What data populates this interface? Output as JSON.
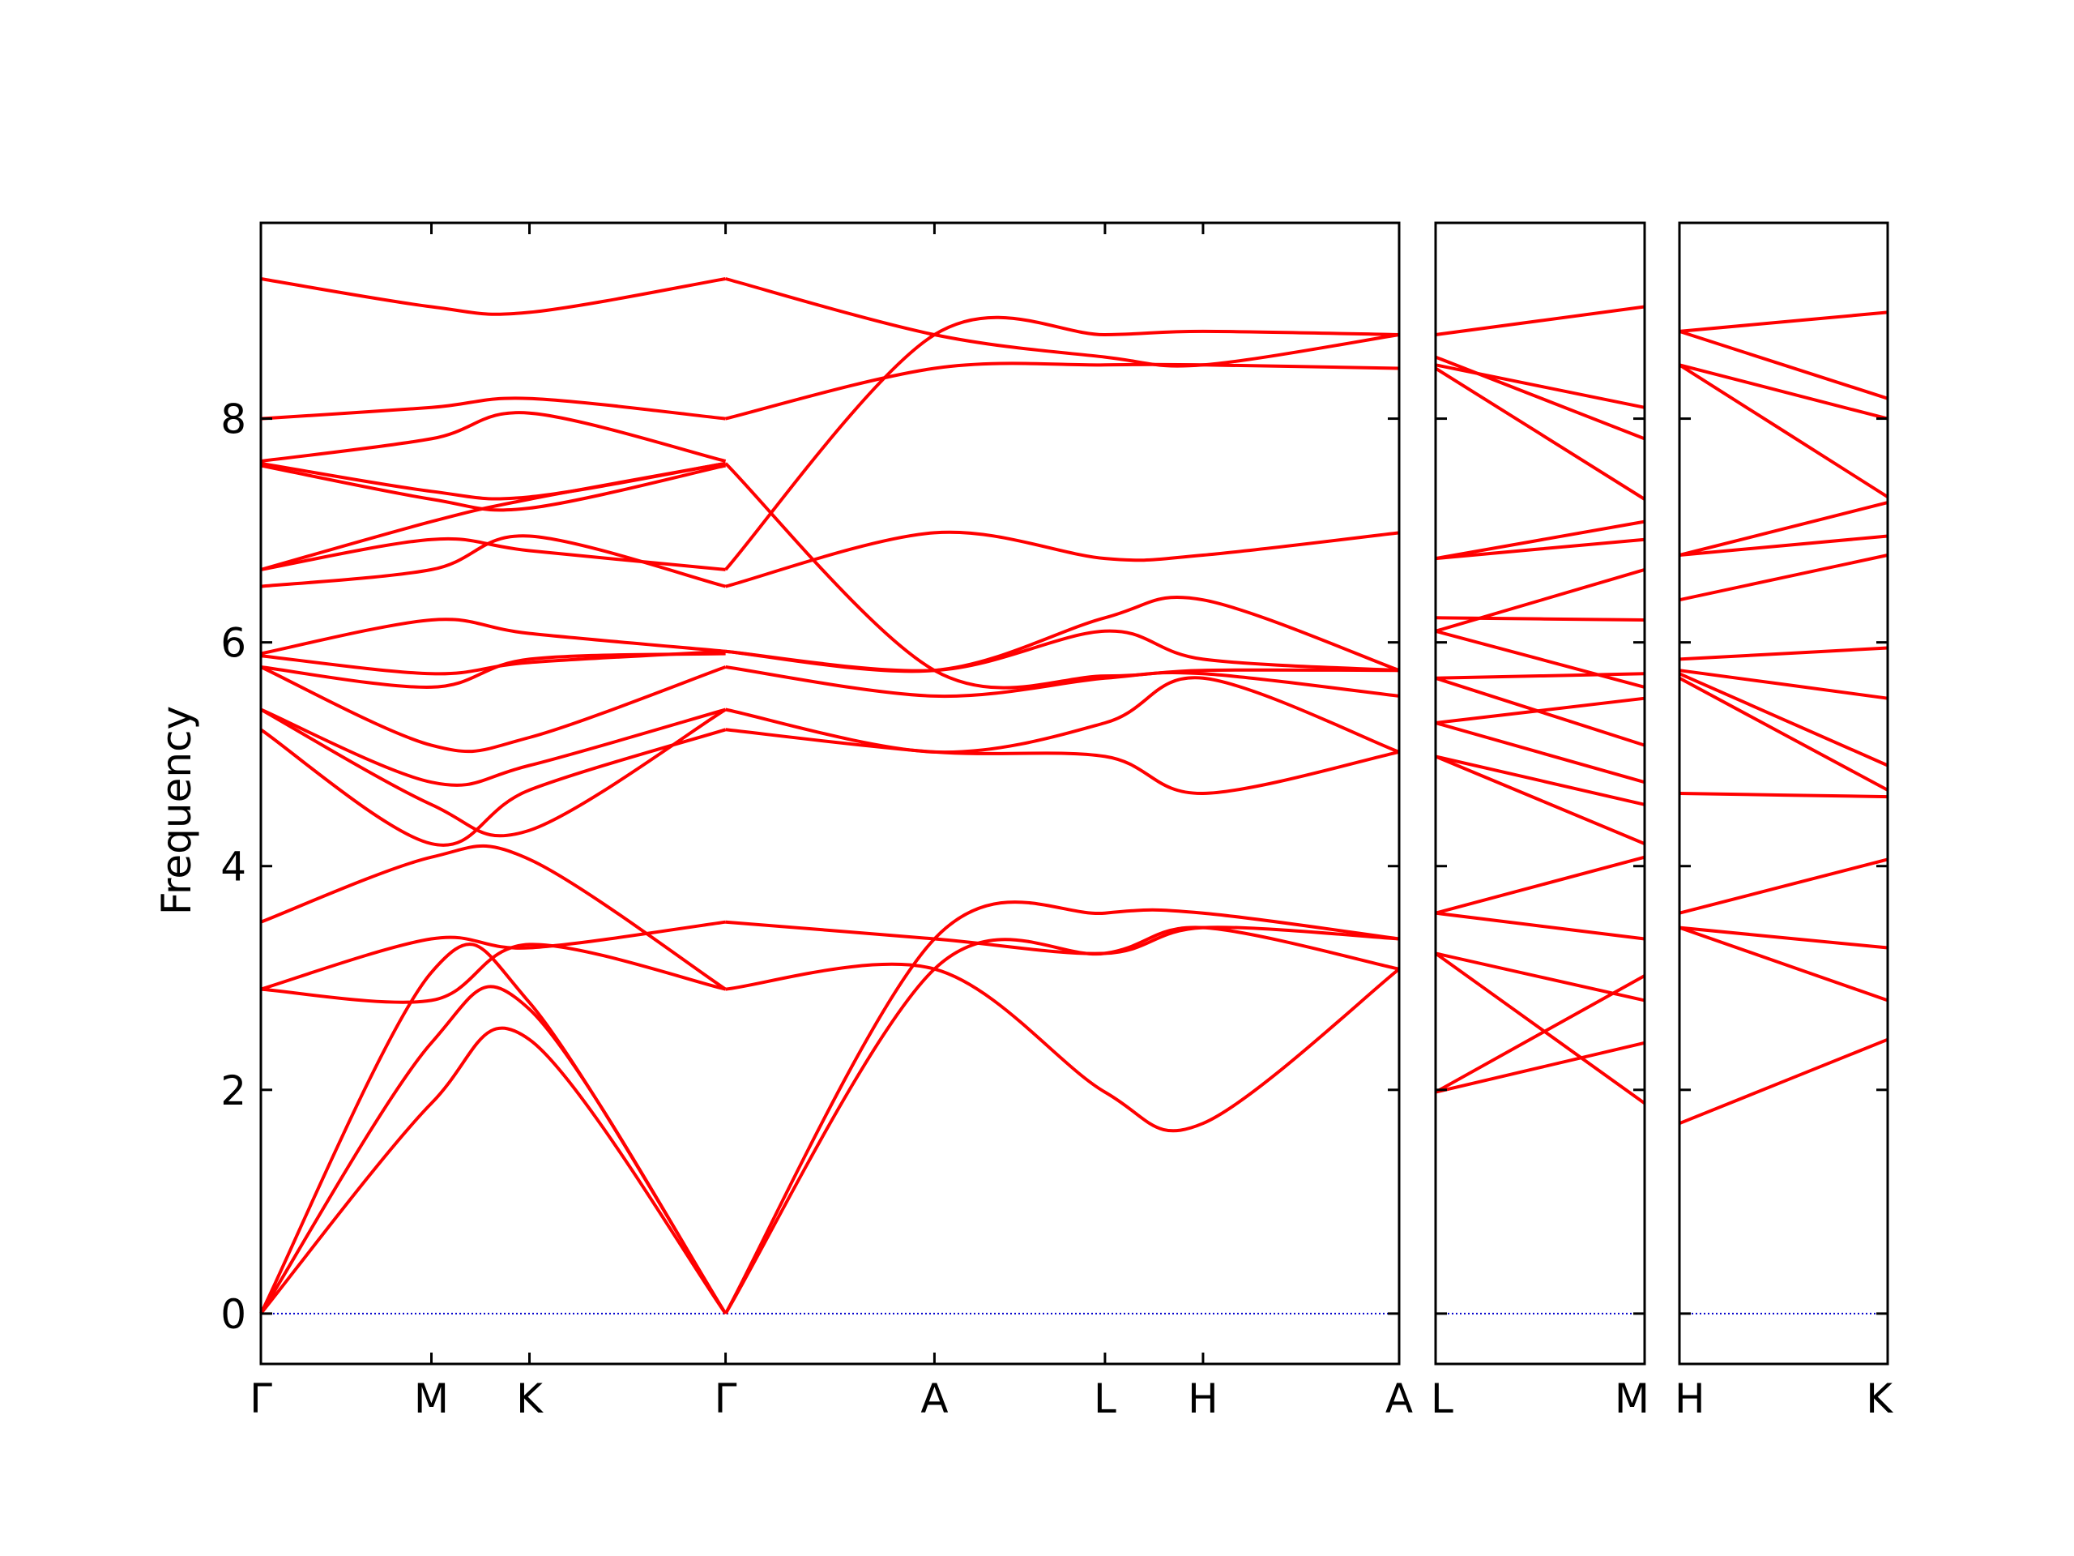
{
  "chart_data": {
    "type": "line",
    "title": "",
    "ylabel": "Frequency",
    "ylim": [
      -0.45,
      9.75
    ],
    "yticks": [
      0,
      2,
      4,
      6,
      8
    ],
    "colors": {
      "bands": "#ff0000",
      "zero_line": "#0000cc",
      "axes": "#000000"
    },
    "panels": [
      {
        "id": "p1",
        "points": [
          {
            "label": "Γ",
            "x": 0.0
          },
          {
            "label": "M",
            "x": 0.8
          },
          {
            "label": "K",
            "x": 1.26
          },
          {
            "label": "Γ",
            "x": 2.18
          },
          {
            "label": "A",
            "x": 3.16
          },
          {
            "label": "L",
            "x": 3.96
          },
          {
            "label": "H",
            "x": 4.42
          },
          {
            "label": "A",
            "x": 5.34
          }
        ],
        "bands": [
          {
            "x": [
              0,
              0.8,
              1.26,
              2.18
            ],
            "y": [
              0,
              1.88,
              2.45,
              0
            ]
          },
          {
            "x": [
              0,
              0.8,
              1.26,
              2.18
            ],
            "y": [
              0,
              2.42,
              2.72,
              0
            ]
          },
          {
            "x": [
              0,
              0.8,
              1.26,
              2.18
            ],
            "y": [
              0,
              3.05,
              2.78,
              0
            ]
          },
          {
            "x": [
              0,
              0.8,
              1.26,
              2.18
            ],
            "y": [
              2.9,
              2.8,
              3.3,
              2.9
            ]
          },
          {
            "x": [
              0,
              0.8,
              1.26,
              2.18
            ],
            "y": [
              2.9,
              3.35,
              3.27,
              3.5
            ]
          },
          {
            "x": [
              0,
              0.8,
              1.26,
              2.18
            ],
            "y": [
              3.5,
              4.08,
              4.06,
              2.9
            ]
          },
          {
            "x": [
              0,
              0.8,
              1.26,
              2.18
            ],
            "y": [
              5.22,
              4.2,
              4.68,
              5.22
            ]
          },
          {
            "x": [
              0,
              0.8,
              1.26,
              2.18
            ],
            "y": [
              5.4,
              4.55,
              4.32,
              5.4
            ]
          },
          {
            "x": [
              0,
              0.8,
              1.26,
              2.18
            ],
            "y": [
              5.4,
              4.75,
              4.9,
              5.4
            ]
          },
          {
            "x": [
              0,
              0.8,
              1.26,
              2.18
            ],
            "y": [
              5.78,
              5.08,
              5.15,
              5.78
            ]
          },
          {
            "x": [
              0,
              0.8,
              1.26,
              2.18
            ],
            "y": [
              5.78,
              5.6,
              5.85,
              5.9
            ]
          },
          {
            "x": [
              0,
              0.8,
              1.26,
              2.18
            ],
            "y": [
              5.88,
              5.72,
              5.82,
              5.92
            ]
          },
          {
            "x": [
              0,
              0.8,
              1.26,
              2.18
            ],
            "y": [
              5.9,
              6.2,
              6.08,
              5.92
            ]
          },
          {
            "x": [
              0,
              0.8,
              1.26,
              2.18
            ],
            "y": [
              6.5,
              6.65,
              6.95,
              6.5
            ]
          },
          {
            "x": [
              0,
              0.8,
              1.26,
              2.18
            ],
            "y": [
              6.65,
              6.92,
              6.82,
              6.65
            ]
          },
          {
            "x": [
              0,
              0.8,
              1.26,
              2.18
            ],
            "y": [
              6.65,
              7.08,
              7.28,
              7.6
            ]
          },
          {
            "x": [
              0,
              0.8,
              1.26,
              2.18
            ],
            "y": [
              7.58,
              7.28,
              7.2,
              7.58
            ]
          },
          {
            "x": [
              0,
              0.8,
              1.26,
              2.18
            ],
            "y": [
              7.6,
              7.35,
              7.3,
              7.6
            ]
          },
          {
            "x": [
              0,
              0.8,
              1.26,
              2.18
            ],
            "y": [
              7.62,
              7.82,
              8.05,
              7.62
            ]
          },
          {
            "x": [
              0,
              0.8,
              1.26,
              2.18
            ],
            "y": [
              8.0,
              8.1,
              8.18,
              8.0
            ]
          },
          {
            "x": [
              0,
              0.8,
              1.26,
              2.18
            ],
            "y": [
              9.25,
              9.0,
              8.95,
              9.25
            ]
          },
          {
            "x": [
              2.18,
              3.16,
              3.96,
              4.42,
              5.34
            ],
            "y": [
              0,
              3.08,
              3.22,
              3.45,
              3.08
            ]
          },
          {
            "x": [
              2.18,
              3.16,
              3.96,
              4.42,
              5.34
            ],
            "y": [
              0,
              3.35,
              3.58,
              3.58,
              3.35
            ]
          },
          {
            "x": [
              2.18,
              3.16,
              3.96,
              4.42,
              5.34
            ],
            "y": [
              2.9,
              3.08,
              1.98,
              1.7,
              3.08
            ]
          },
          {
            "x": [
              2.18,
              3.16,
              3.96,
              4.42,
              5.34
            ],
            "y": [
              3.5,
              3.35,
              3.22,
              3.45,
              3.35
            ]
          },
          {
            "x": [
              2.18,
              3.16,
              3.96,
              4.42,
              5.34
            ],
            "y": [
              5.22,
              5.02,
              4.98,
              4.65,
              5.02
            ]
          },
          {
            "x": [
              2.18,
              3.16,
              3.96,
              4.42,
              5.34
            ],
            "y": [
              5.4,
              5.02,
              5.28,
              5.68,
              5.02
            ]
          },
          {
            "x": [
              2.18,
              3.16,
              3.96,
              4.42,
              5.34
            ],
            "y": [
              5.78,
              5.52,
              5.68,
              5.72,
              5.52
            ]
          },
          {
            "x": [
              2.18,
              3.16,
              3.96,
              4.42,
              5.34
            ],
            "y": [
              5.92,
              5.75,
              6.1,
              5.85,
              5.75
            ]
          },
          {
            "x": [
              2.18,
              3.16,
              3.96,
              4.42,
              5.34
            ],
            "y": [
              5.92,
              5.75,
              6.22,
              6.38,
              5.75
            ]
          },
          {
            "x": [
              2.18,
              3.16,
              3.96,
              4.42,
              5.34
            ],
            "y": [
              6.5,
              6.98,
              6.75,
              6.78,
              6.98
            ]
          },
          {
            "x": [
              2.18,
              3.16,
              3.96,
              4.42,
              5.34
            ],
            "y": [
              6.65,
              8.75,
              8.75,
              8.78,
              8.75
            ]
          },
          {
            "x": [
              2.18,
              3.16,
              3.96,
              4.42,
              5.34
            ],
            "y": [
              7.6,
              5.75,
              5.7,
              5.75,
              5.75
            ]
          },
          {
            "x": [
              2.18,
              3.16,
              3.96,
              4.42,
              5.34
            ],
            "y": [
              8.0,
              8.45,
              8.48,
              8.48,
              8.45
            ]
          },
          {
            "x": [
              2.18,
              3.16,
              3.96,
              4.42,
              5.34
            ],
            "y": [
              9.25,
              8.75,
              8.55,
              8.48,
              8.75
            ]
          }
        ]
      },
      {
        "id": "p2",
        "points": [
          {
            "label": "L",
            "x": 0.0
          },
          {
            "label": "M",
            "x": 1.0
          }
        ],
        "bands": [
          {
            "x": [
              0,
              1
            ],
            "y": [
              1.98,
              3.02
            ]
          },
          {
            "x": [
              0,
              1
            ],
            "y": [
              1.98,
              2.42
            ]
          },
          {
            "x": [
              0,
              1
            ],
            "y": [
              3.22,
              1.88
            ]
          },
          {
            "x": [
              0,
              1
            ],
            "y": [
              3.22,
              2.8
            ]
          },
          {
            "x": [
              0,
              1
            ],
            "y": [
              3.58,
              3.35
            ]
          },
          {
            "x": [
              0,
              1
            ],
            "y": [
              3.58,
              4.08
            ]
          },
          {
            "x": [
              0,
              1
            ],
            "y": [
              4.98,
              4.2
            ]
          },
          {
            "x": [
              0,
              1
            ],
            "y": [
              4.98,
              4.55
            ]
          },
          {
            "x": [
              0,
              1
            ],
            "y": [
              5.28,
              4.75
            ]
          },
          {
            "x": [
              0,
              1
            ],
            "y": [
              5.28,
              5.5
            ]
          },
          {
            "x": [
              0,
              1
            ],
            "y": [
              5.68,
              5.08
            ]
          },
          {
            "x": [
              0,
              1
            ],
            "y": [
              5.68,
              5.72
            ]
          },
          {
            "x": [
              0,
              1
            ],
            "y": [
              6.1,
              5.6
            ]
          },
          {
            "x": [
              0,
              1
            ],
            "y": [
              6.22,
              6.2
            ]
          },
          {
            "x": [
              0,
              1
            ],
            "y": [
              6.1,
              6.65
            ]
          },
          {
            "x": [
              0,
              1
            ],
            "y": [
              6.75,
              6.92
            ]
          },
          {
            "x": [
              0,
              1
            ],
            "y": [
              6.75,
              7.08
            ]
          },
          {
            "x": [
              0,
              1
            ],
            "y": [
              8.45,
              7.28
            ]
          },
          {
            "x": [
              0,
              1
            ],
            "y": [
              8.55,
              7.82
            ]
          },
          {
            "x": [
              0,
              1
            ],
            "y": [
              8.48,
              8.1
            ]
          },
          {
            "x": [
              0,
              1
            ],
            "y": [
              8.75,
              9.0
            ]
          }
        ]
      },
      {
        "id": "p3",
        "points": [
          {
            "label": "H",
            "x": 0.0
          },
          {
            "label": "K",
            "x": 1.0
          }
        ],
        "bands": [
          {
            "x": [
              0,
              1
            ],
            "y": [
              1.7,
              2.45
            ]
          },
          {
            "x": [
              0,
              1
            ],
            "y": [
              3.45,
              2.8
            ]
          },
          {
            "x": [
              0,
              1
            ],
            "y": [
              3.45,
              3.27
            ]
          },
          {
            "x": [
              0,
              1
            ],
            "y": [
              3.58,
              4.06
            ]
          },
          {
            "x": [
              0,
              1
            ],
            "y": [
              4.65,
              4.62
            ]
          },
          {
            "x": [
              0,
              1
            ],
            "y": [
              5.68,
              4.68
            ]
          },
          {
            "x": [
              0,
              1
            ],
            "y": [
              5.72,
              4.9
            ]
          },
          {
            "x": [
              0,
              1
            ],
            "y": [
              5.75,
              5.5
            ]
          },
          {
            "x": [
              0,
              1
            ],
            "y": [
              5.85,
              5.95
            ]
          },
          {
            "x": [
              0,
              1
            ],
            "y": [
              6.38,
              6.78
            ]
          },
          {
            "x": [
              0,
              1
            ],
            "y": [
              6.78,
              6.95
            ]
          },
          {
            "x": [
              0,
              1
            ],
            "y": [
              6.78,
              7.25
            ]
          },
          {
            "x": [
              0,
              1
            ],
            "y": [
              8.48,
              7.3
            ]
          },
          {
            "x": [
              0,
              1
            ],
            "y": [
              8.48,
              8.0
            ]
          },
          {
            "x": [
              0,
              1
            ],
            "y": [
              8.78,
              8.18
            ]
          },
          {
            "x": [
              0,
              1
            ],
            "y": [
              8.78,
              8.95
            ]
          }
        ]
      }
    ]
  }
}
